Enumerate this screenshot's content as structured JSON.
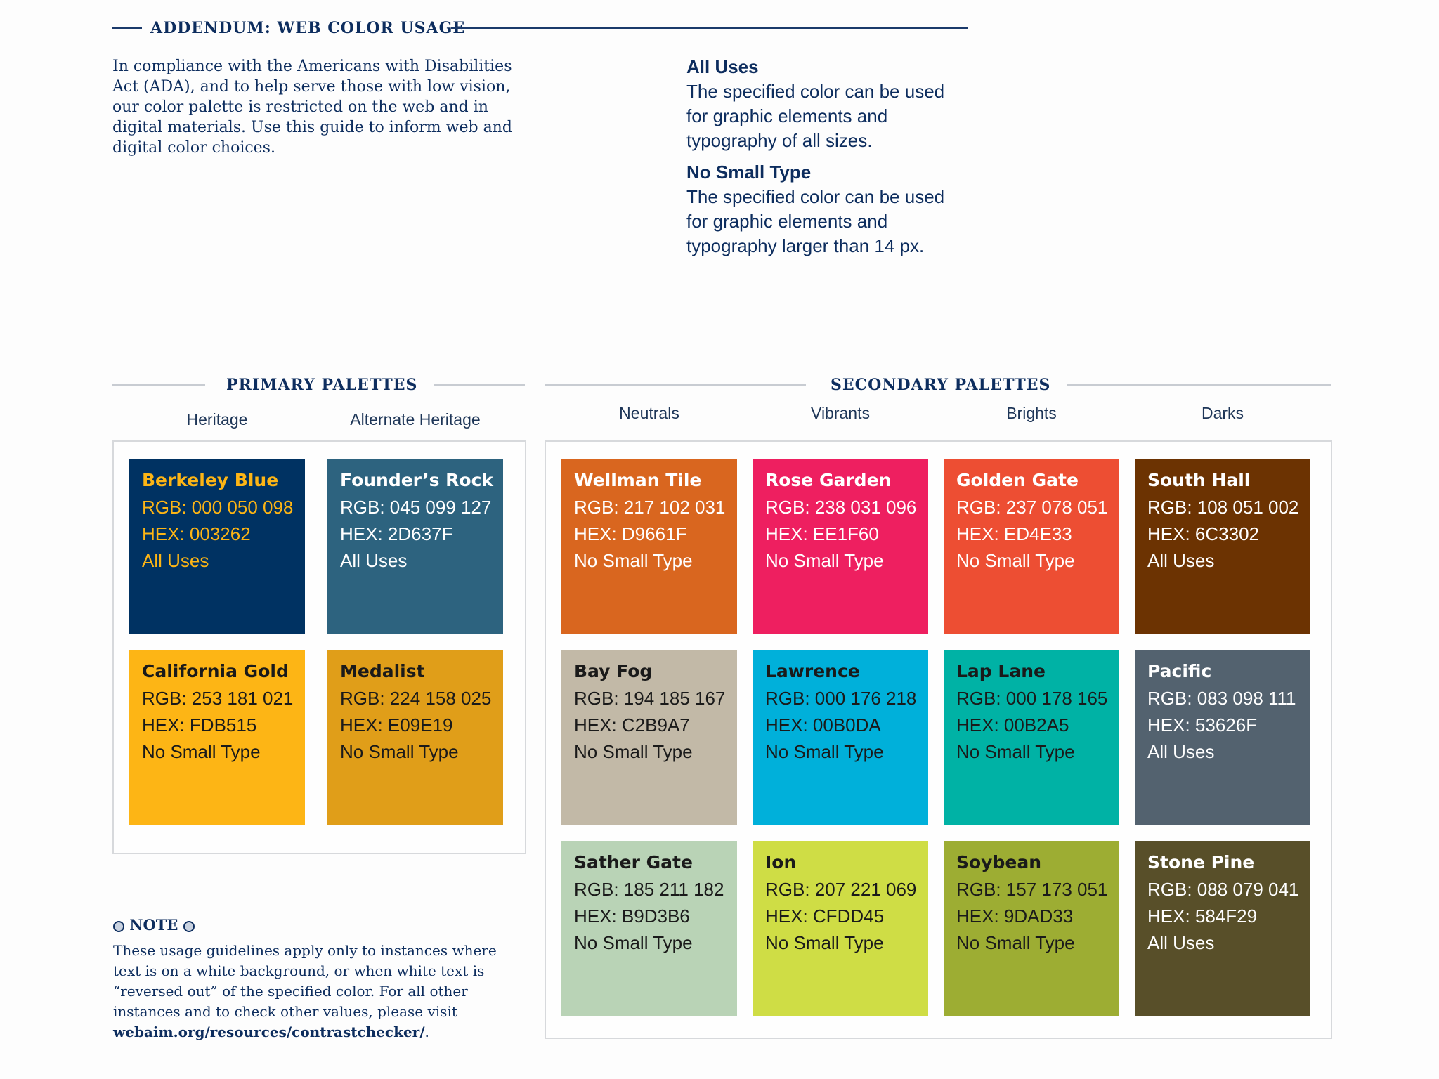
{
  "header": {
    "title": "ADDENDUM: WEB COLOR USAGE"
  },
  "intro": "In compliance with the Americans with Disabilities Act (ADA), and to help serve those with low vision, our color palette is restricted on the web and in digital materials. Use this guide to inform web and digital color choices.",
  "legend": {
    "all_uses_title": "All Uses",
    "all_uses_text": "The specified color can be used for graphic elements and typography of all sizes.",
    "no_small_title": "No Small Type",
    "no_small_text": "The specified color can be used for graphic elements and typography larger than 14 px."
  },
  "primary": {
    "title": "PRIMARY PALETTES",
    "columns": [
      "Heritage",
      "Alternate Heritage"
    ],
    "swatches": [
      {
        "name": "Berkeley Blue",
        "rgb": "RGB: 000 050 098",
        "hex": "HEX: 003262",
        "usage": "All Uses",
        "color": "#003262",
        "text_color": "#FDB515"
      },
      {
        "name": "Founder’s Rock",
        "rgb": "RGB: 045 099 127",
        "hex": "HEX: 2D637F",
        "usage": "All Uses",
        "color": "#2D637F",
        "text_color": "#FFFFFF"
      },
      {
        "name": "California Gold",
        "rgb": "RGB: 253 181 021",
        "hex": "HEX: FDB515",
        "usage": "No Small Type",
        "color": "#FDB515",
        "text_color": "#1A1A1A"
      },
      {
        "name": "Medalist",
        "rgb": "RGB: 224 158 025",
        "hex": "HEX: E09E19",
        "usage": "No Small Type",
        "color": "#E09E19",
        "text_color": "#1A1A1A"
      }
    ]
  },
  "secondary": {
    "title": "SECONDARY PALETTES",
    "columns": [
      "Neutrals",
      "Vibrants",
      "Brights",
      "Darks"
    ],
    "swatches": [
      {
        "name": "Wellman Tile",
        "rgb": "RGB: 217 102 031",
        "hex": "HEX: D9661F",
        "usage": "No Small Type",
        "color": "#D9661F",
        "text_color": "#FFFFFF"
      },
      {
        "name": "Rose Garden",
        "rgb": "RGB: 238 031 096",
        "hex": "HEX: EE1F60",
        "usage": "No Small Type",
        "color": "#EE1F60",
        "text_color": "#FFFFFF"
      },
      {
        "name": "Golden Gate",
        "rgb": "RGB: 237 078 051",
        "hex": "HEX: ED4E33",
        "usage": "No Small Type",
        "color": "#ED4E33",
        "text_color": "#FFFFFF"
      },
      {
        "name": "South Hall",
        "rgb": "RGB: 108 051 002",
        "hex": "HEX: 6C3302",
        "usage": "All Uses",
        "color": "#6C3302",
        "text_color": "#FFFFFF"
      },
      {
        "name": "Bay Fog",
        "rgb": "RGB: 194 185 167",
        "hex": "HEX: C2B9A7",
        "usage": "No Small Type",
        "color": "#C2B9A7",
        "text_color": "#1A1A1A"
      },
      {
        "name": "Lawrence",
        "rgb": "RGB: 000 176 218",
        "hex": "HEX: 00B0DA",
        "usage": "No Small Type",
        "color": "#00B0DA",
        "text_color": "#1A1A1A"
      },
      {
        "name": "Lap Lane",
        "rgb": "RGB: 000 178 165",
        "hex": "HEX: 00B2A5",
        "usage": "No Small Type",
        "color": "#00B2A5",
        "text_color": "#1A1A1A"
      },
      {
        "name": "Pacific",
        "rgb": "RGB: 083 098 111",
        "hex": "HEX: 53626F",
        "usage": "All Uses",
        "color": "#53626F",
        "text_color": "#FFFFFF"
      },
      {
        "name": "Sather Gate",
        "rgb": "RGB: 185 211 182",
        "hex": "HEX: B9D3B6",
        "usage": "No Small Type",
        "color": "#B9D3B6",
        "text_color": "#1A1A1A"
      },
      {
        "name": "Ion",
        "rgb": "RGB: 207 221 069",
        "hex": "HEX: CFDD45",
        "usage": "No Small Type",
        "color": "#CFDD45",
        "text_color": "#1A1A1A"
      },
      {
        "name": "Soybean",
        "rgb": "RGB: 157 173 051",
        "hex": "HEX: 9DAD33",
        "usage": "No Small Type",
        "color": "#9DAD33",
        "text_color": "#1A1A1A"
      },
      {
        "name": "Stone Pine",
        "rgb": "RGB: 088 079 041",
        "hex": "HEX: 584F29",
        "usage": "All Uses",
        "color": "#584F29",
        "text_color": "#FFFFFF"
      }
    ]
  },
  "note": {
    "title": "NOTE",
    "text": "These usage guidelines apply only to instances where text is on a white background, or when white text is “reversed out” of the specified color. For all other instances and to check other values, please visit",
    "link": "webaim.org/resources/contrastchecker/",
    "link_suffix": "."
  }
}
